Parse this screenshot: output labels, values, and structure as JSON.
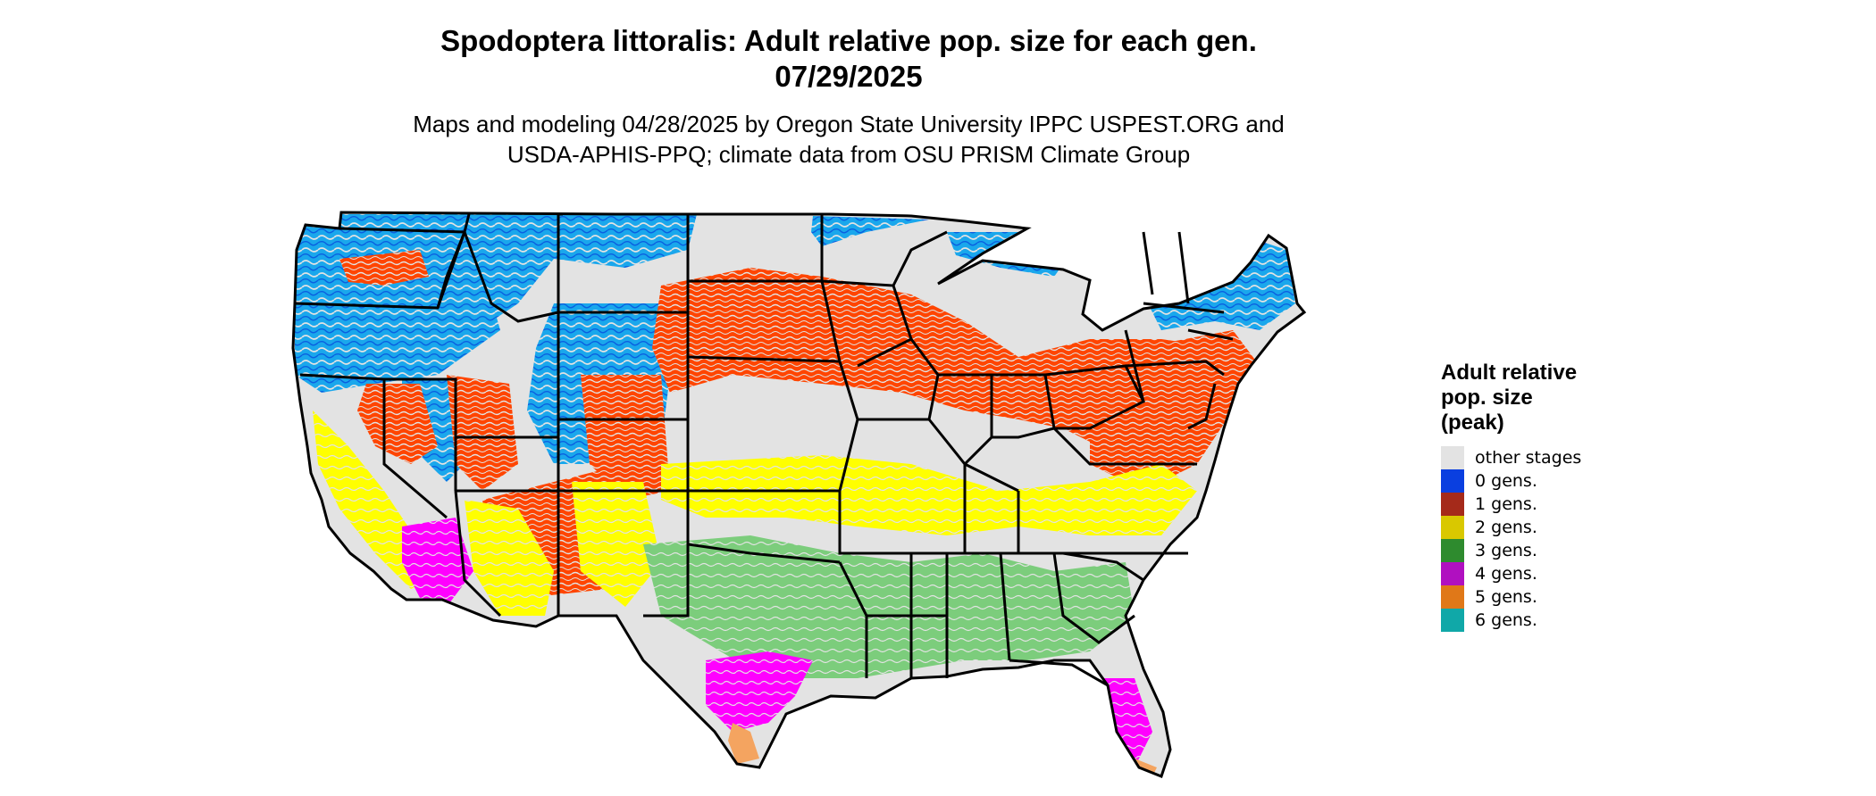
{
  "title_line1": "Spodoptera littoralis: Adult relative pop. size for each gen.",
  "title_line2": "07/29/2025",
  "subtitle_line1": "Maps and modeling 04/28/2025 by Oregon State University IPPC USPEST.ORG and",
  "subtitle_line2": "USDA-APHIS-PPQ; climate data from OSU PRISM Climate Group",
  "legend": {
    "title_line1": "Adult relative",
    "title_line2": "pop. size",
    "title_line3": "(peak)",
    "items": [
      {
        "label": "other stages",
        "color": "#e3e3e3"
      },
      {
        "label": "0 gens.",
        "color": "#0a3fe0"
      },
      {
        "label": "1 gens.",
        "color": "#a52a1a"
      },
      {
        "label": "2 gens.",
        "color": "#d9c800"
      },
      {
        "label": "3 gens.",
        "color": "#2e8b2e"
      },
      {
        "label": "4 gens.",
        "color": "#b010c0"
      },
      {
        "label": "5 gens.",
        "color": "#e07818"
      },
      {
        "label": "6 gens.",
        "color": "#10a8a8"
      }
    ]
  },
  "map_colors": {
    "background_land": "#e3e3e3",
    "zero_gens_light": "#1aa7ec",
    "zero_gens_dark": "#0a5fe0",
    "one_gen_orange": "#ff4500",
    "two_gens_yellow": "#ffff00",
    "three_gens_green": "#7ccd7c",
    "four_gens_magenta": "#ff00ff",
    "five_gens_orange": "#f4a460",
    "borders": "#000000"
  }
}
